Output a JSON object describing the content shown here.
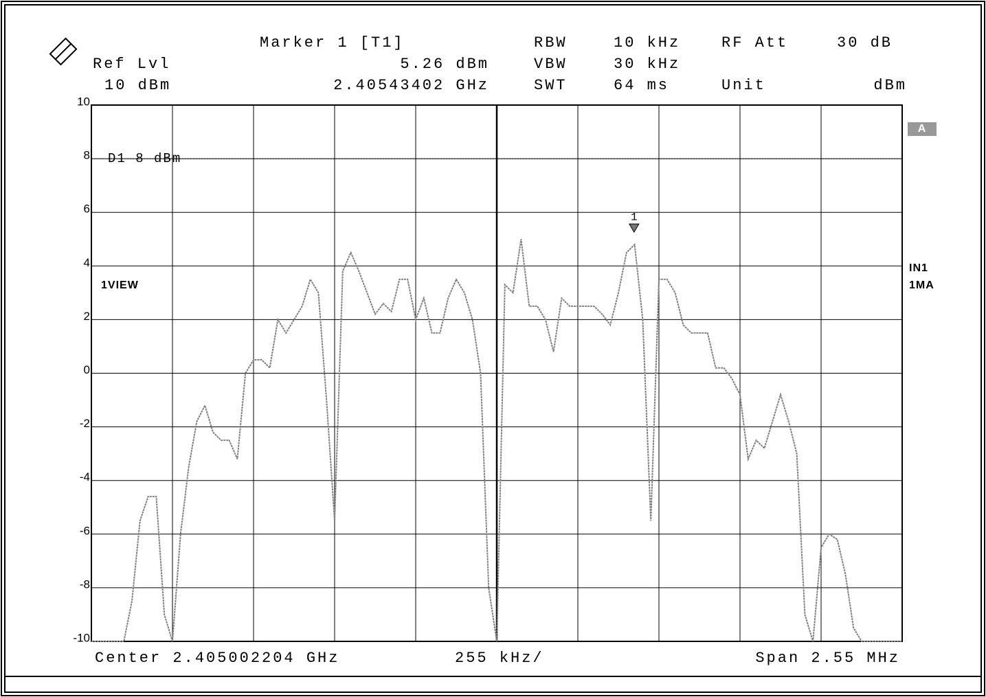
{
  "chart_data": {
    "type": "line",
    "header": {
      "marker_title": "Marker 1 [T1]",
      "ref_lvl_label": "Ref Lvl",
      "ref_lvl": "10 dBm",
      "marker_level": "5.26 dBm",
      "marker_freq": "2.40543402 GHz",
      "rbw_label": "RBW",
      "rbw": "10 kHz",
      "vbw_label": "VBW",
      "vbw": "30 kHz",
      "swt_label": "SWT",
      "swt": "64 ms",
      "rf_att_label": "RF Att",
      "rf_att": "30 dB",
      "unit_label": "Unit",
      "unit": "dBm"
    },
    "footer": {
      "center": "Center 2.405002204 GHz",
      "per_div": "255 kHz/",
      "span": "Span 2.55 MHz"
    },
    "trace_label": "1VIEW",
    "side_labels": {
      "a": "A",
      "in": "IN1",
      "mode": "1MA"
    },
    "center_ghz": 2.405002204,
    "span_mhz": 2.55,
    "marker": {
      "label": "1",
      "freq_ghz": 2.40543402,
      "level": 5.26
    },
    "display_line": {
      "label": "D1 8 dBm",
      "value": 8
    },
    "ylim": [
      -10,
      10
    ],
    "yticks": [
      10,
      8,
      6,
      4,
      2,
      0,
      -2,
      -4,
      -6,
      -8,
      -10
    ],
    "grid": true,
    "color": "#808080",
    "values": [
      -10,
      -10,
      -10,
      -10,
      -10,
      -8.5,
      -5.5,
      -4.6,
      -4.6,
      -9,
      -10,
      -6,
      -3.5,
      -1.8,
      -1.2,
      -2.2,
      -2.5,
      -2.5,
      -3.2,
      0,
      0.5,
      0.5,
      0.2,
      2,
      1.5,
      2,
      2.5,
      3.5,
      3,
      -1,
      -5.5,
      3.8,
      4.5,
      3.8,
      3,
      2.2,
      2.6,
      2.3,
      3.5,
      3.5,
      2,
      2.8,
      1.5,
      1.5,
      2.8,
      3.5,
      3,
      2,
      0,
      -8,
      -10,
      3.3,
      3,
      5,
      2.5,
      2.5,
      2,
      0.8,
      2.8,
      2.5,
      2.5,
      2.5,
      2.5,
      2.2,
      1.8,
      3,
      4.5,
      4.8,
      2,
      -5.5,
      3.5,
      3.5,
      3,
      1.8,
      1.5,
      1.5,
      1.5,
      0.2,
      0.2,
      -0.2,
      -0.8,
      -3.2,
      -2.5,
      -2.8,
      -1.8,
      -0.8,
      -1.8,
      -3,
      -9,
      -10,
      -6.5,
      -6,
      -6.2,
      -7.5,
      -9.5,
      -10,
      -10,
      -10,
      -10,
      -10,
      -10
    ]
  }
}
